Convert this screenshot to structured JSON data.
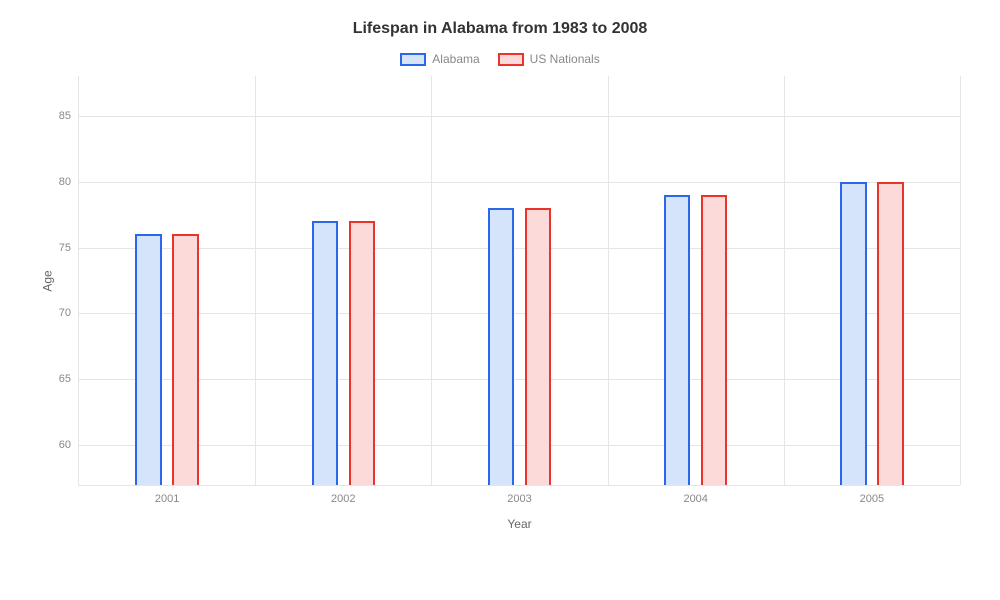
{
  "chart": {
    "type": "bar",
    "title": "Lifespan in Alabama from 1983 to 2008",
    "title_fontsize": 16,
    "title_color": "#333333",
    "xlabel": "Year",
    "ylabel": "Age",
    "label_fontsize": 12,
    "label_color": "#666666",
    "tick_fontsize": 11,
    "tick_color": "#888888",
    "background_color": "#ffffff",
    "grid_color": "#e5e5e5",
    "categories": [
      "2001",
      "2002",
      "2003",
      "2004",
      "2005"
    ],
    "series": [
      {
        "name": "Alabama",
        "values": [
          76,
          77,
          78,
          79,
          80
        ],
        "fill_color": "#d6e4fb",
        "border_color": "#2b67e9"
      },
      {
        "name": "US Nationals",
        "values": [
          76,
          77,
          78,
          79,
          80
        ],
        "fill_color": "#fcdada",
        "border_color": "#e9332b"
      }
    ],
    "ymin": 57,
    "ymax": 88,
    "yticks": [
      60,
      65,
      70,
      75,
      80,
      85
    ],
    "bar_width_pct": 3.0,
    "bar_gap_pct": 1.2,
    "group_spacing_pct": 20,
    "legend_swatch_width": 26,
    "legend_swatch_height": 13,
    "legend_border_width": 2
  }
}
